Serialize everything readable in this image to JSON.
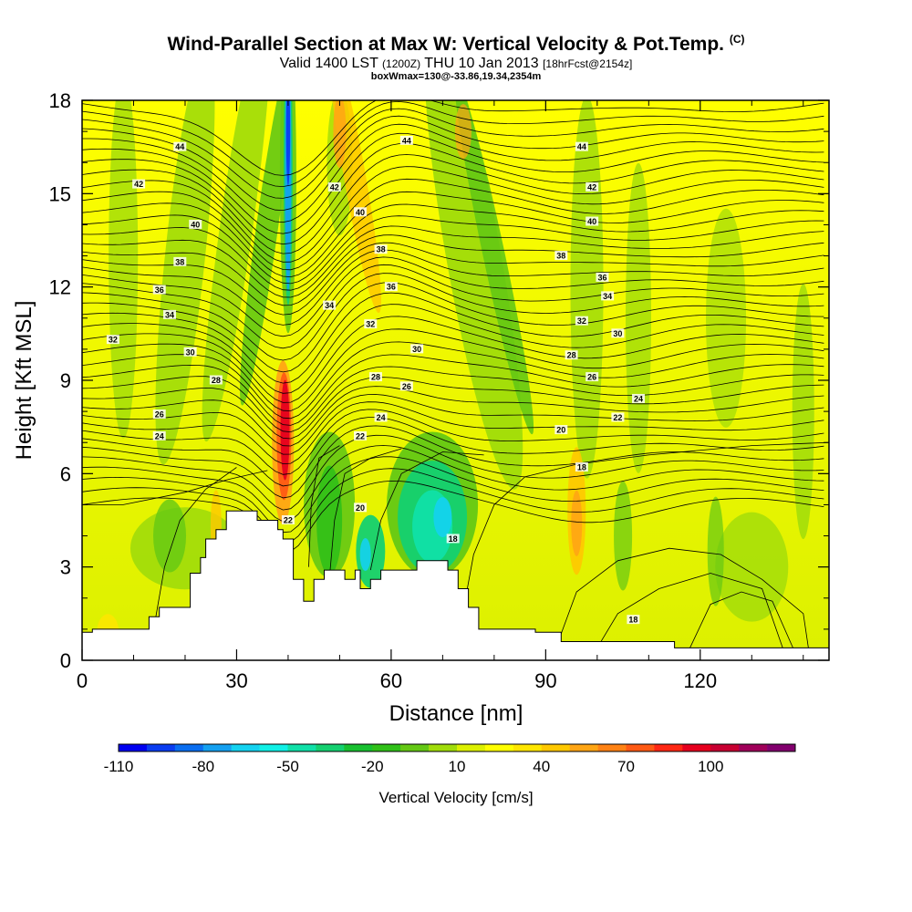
{
  "title": {
    "main": "Wind-Parallel Section at Max W: Vertical Velocity & Pot.Temp.",
    "main_tag": "(C)",
    "line2_a": "Valid 1400 LST",
    "line2_b": "(1200Z)",
    "line2_c": "THU 10 Jan 2013",
    "line2_d": "[18hrFcst@2154z]",
    "line3": "boxWmax=130@-33.86,19.34,2354m"
  },
  "chart_data": {
    "type": "heatmap",
    "xlabel": "Distance [nm]",
    "ylabel": "Height [Kft MSL]",
    "xlim": [
      0,
      145
    ],
    "ylim": [
      0,
      18
    ],
    "xticks": [
      0,
      30,
      60,
      90,
      120
    ],
    "yticks": [
      0,
      3,
      6,
      9,
      12,
      15,
      18
    ],
    "colorbar": {
      "title": "Vertical Velocity [cm/s]",
      "labels": [
        "-110",
        "-80",
        "-50",
        "-20",
        "10",
        "40",
        "70",
        "100"
      ],
      "colors": [
        "#0000f0",
        "#0a3cf0",
        "#0a6ef0",
        "#14a0f0",
        "#14d2f0",
        "#10f0e6",
        "#10e0a8",
        "#14d070",
        "#18c030",
        "#30c018",
        "#64c814",
        "#a0dc0a",
        "#dcf000",
        "#ffff00",
        "#ffe600",
        "#ffc800",
        "#ffa514",
        "#ff8214",
        "#ff5a14",
        "#ff2814",
        "#e6001e",
        "#c80032",
        "#a0005a",
        "#82006e"
      ]
    },
    "contour_field": "Potential temperature (C)",
    "contour_labels": [
      {
        "x": 19,
        "y": 16.5,
        "text": "44"
      },
      {
        "x": 63,
        "y": 16.7,
        "text": "44"
      },
      {
        "x": 97,
        "y": 16.5,
        "text": "44"
      },
      {
        "x": 11,
        "y": 15.3,
        "text": "42"
      },
      {
        "x": 49,
        "y": 15.2,
        "text": "42"
      },
      {
        "x": 99,
        "y": 15.2,
        "text": "42"
      },
      {
        "x": 22,
        "y": 14.0,
        "text": "40"
      },
      {
        "x": 54,
        "y": 14.4,
        "text": "40"
      },
      {
        "x": 99,
        "y": 14.1,
        "text": "40"
      },
      {
        "x": 19,
        "y": 12.8,
        "text": "38"
      },
      {
        "x": 58,
        "y": 13.2,
        "text": "38"
      },
      {
        "x": 93,
        "y": 13.0,
        "text": "38"
      },
      {
        "x": 15,
        "y": 11.9,
        "text": "36"
      },
      {
        "x": 60,
        "y": 12.0,
        "text": "36"
      },
      {
        "x": 101,
        "y": 12.3,
        "text": "36"
      },
      {
        "x": 17,
        "y": 11.1,
        "text": "34"
      },
      {
        "x": 48,
        "y": 11.4,
        "text": "34"
      },
      {
        "x": 102,
        "y": 11.7,
        "text": "34"
      },
      {
        "x": 6,
        "y": 10.3,
        "text": "32"
      },
      {
        "x": 56,
        "y": 10.8,
        "text": "32"
      },
      {
        "x": 97,
        "y": 10.9,
        "text": "32"
      },
      {
        "x": 21,
        "y": 9.9,
        "text": "30"
      },
      {
        "x": 65,
        "y": 10.0,
        "text": "30"
      },
      {
        "x": 104,
        "y": 10.5,
        "text": "30"
      },
      {
        "x": 26,
        "y": 9.0,
        "text": "28"
      },
      {
        "x": 57,
        "y": 9.1,
        "text": "28"
      },
      {
        "x": 95,
        "y": 9.8,
        "text": "28"
      },
      {
        "x": 15,
        "y": 7.9,
        "text": "26"
      },
      {
        "x": 63,
        "y": 8.8,
        "text": "26"
      },
      {
        "x": 99,
        "y": 9.1,
        "text": "26"
      },
      {
        "x": 15,
        "y": 7.2,
        "text": "24"
      },
      {
        "x": 58,
        "y": 7.8,
        "text": "24"
      },
      {
        "x": 108,
        "y": 8.4,
        "text": "24"
      },
      {
        "x": 54,
        "y": 7.2,
        "text": "22"
      },
      {
        "x": 40,
        "y": 4.5,
        "text": "22"
      },
      {
        "x": 104,
        "y": 7.8,
        "text": "22"
      },
      {
        "x": 93,
        "y": 7.4,
        "text": "20"
      },
      {
        "x": 54,
        "y": 4.9,
        "text": "20"
      },
      {
        "x": 97,
        "y": 6.2,
        "text": "18"
      },
      {
        "x": 72,
        "y": 3.9,
        "text": "18"
      },
      {
        "x": 107,
        "y": 1.3,
        "text": "18"
      }
    ]
  }
}
